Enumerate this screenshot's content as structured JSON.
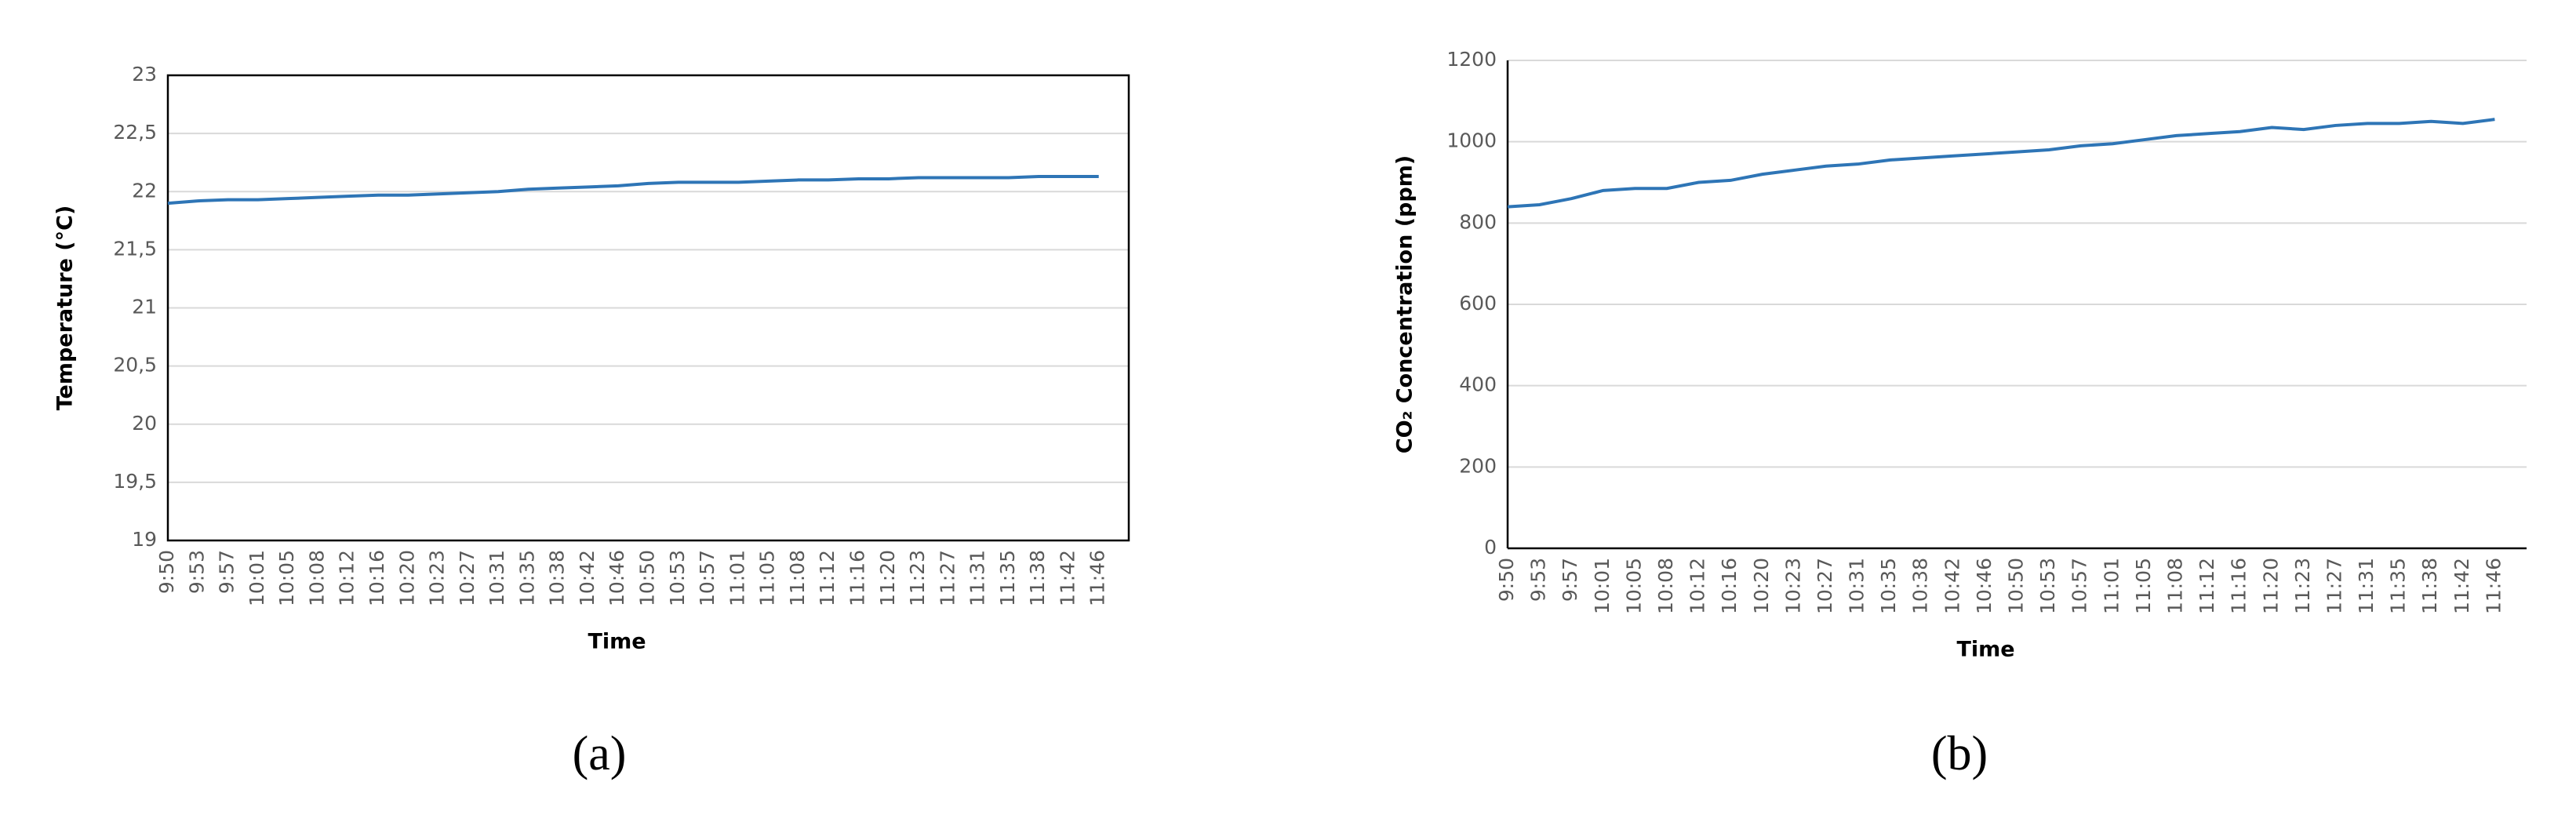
{
  "chart_data": [
    {
      "type": "line",
      "y_label": "Temperature (°C)",
      "x_label": "Time",
      "caption": "(a)",
      "color": "#2e75b6",
      "box": true,
      "categories": [
        "9:50",
        "9:53",
        "9:57",
        "10:01",
        "10:05",
        "10:08",
        "10:12",
        "10:16",
        "10:20",
        "10:23",
        "10:27",
        "10:31",
        "10:35",
        "10:38",
        "10:42",
        "10:46",
        "10:50",
        "10:53",
        "10:57",
        "11:01",
        "11:05",
        "11:08",
        "11:12",
        "11:16",
        "11:20",
        "11:23",
        "11:27",
        "11:31",
        "11:35",
        "11:38",
        "11:42",
        "11:46"
      ],
      "values": [
        21.9,
        21.92,
        21.93,
        21.93,
        21.94,
        21.95,
        21.96,
        21.97,
        21.97,
        21.98,
        21.99,
        22.0,
        22.02,
        22.03,
        22.04,
        22.05,
        22.07,
        22.08,
        22.08,
        22.08,
        22.09,
        22.1,
        22.1,
        22.11,
        22.11,
        22.12,
        22.12,
        22.12,
        22.12,
        22.13,
        22.13,
        22.13
      ],
      "ylim": [
        19,
        23
      ],
      "yticks": [
        19,
        {
          "value": 19.5,
          "label": "19,5"
        },
        20,
        {
          "value": 20.5,
          "label": "20,5"
        },
        21,
        {
          "value": 21.5,
          "label": "21,5"
        },
        22,
        {
          "value": 22.5,
          "label": "22,5"
        },
        23
      ],
      "grid": true
    },
    {
      "type": "line",
      "y_label": "CO₂ Concentration (ppm)",
      "x_label": "Time",
      "caption": "(b)",
      "color": "#2e75b6",
      "box": false,
      "categories": [
        "9:50",
        "9:53",
        "9:57",
        "10:01",
        "10:05",
        "10:08",
        "10:12",
        "10:16",
        "10:20",
        "10:23",
        "10:27",
        "10:31",
        "10:35",
        "10:38",
        "10:42",
        "10:46",
        "10:50",
        "10:53",
        "10:57",
        "11:01",
        "11:05",
        "11:08",
        "11:12",
        "11:16",
        "11:20",
        "11:23",
        "11:27",
        "11:31",
        "11:35",
        "11:38",
        "11:42",
        "11:46"
      ],
      "values": [
        840,
        845,
        860,
        880,
        885,
        885,
        900,
        905,
        920,
        930,
        940,
        945,
        955,
        960,
        965,
        970,
        975,
        980,
        990,
        995,
        1005,
        1015,
        1020,
        1025,
        1035,
        1030,
        1040,
        1045,
        1045,
        1050,
        1045,
        1055
      ],
      "ylim": [
        0,
        1200
      ],
      "yticks": [
        0,
        200,
        400,
        600,
        800,
        1000,
        1200
      ],
      "grid": true
    }
  ]
}
